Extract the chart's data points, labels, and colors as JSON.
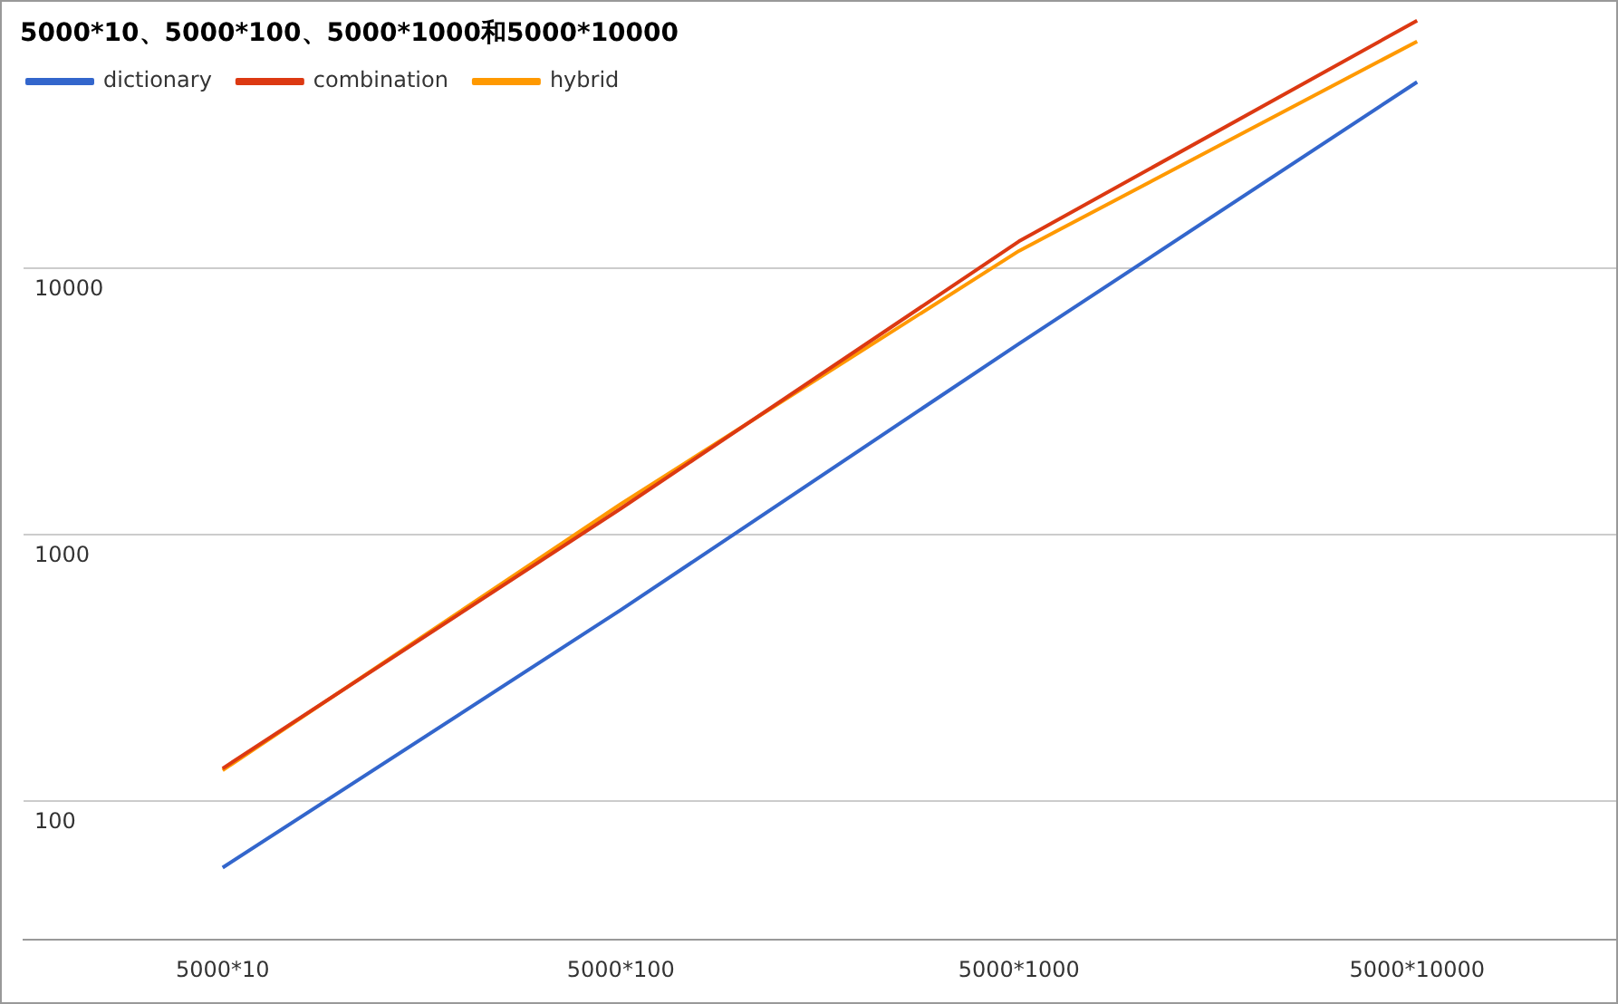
{
  "chart_data": {
    "type": "line",
    "title": "5000*10、5000*100、5000*1000和5000*10000",
    "categories": [
      "5000*10",
      "5000*100",
      "5000*1000",
      "5000*10000"
    ],
    "series": [
      {
        "name": "dictionary",
        "color": "#3366cc",
        "values": [
          56,
          520,
          5200,
          50000
        ]
      },
      {
        "name": "combination",
        "color": "#dc3912",
        "values": [
          132,
          1250,
          12600,
          85000
        ]
      },
      {
        "name": "hybrid",
        "color": "#ff9900",
        "values": [
          130,
          1300,
          11600,
          71000
        ]
      }
    ],
    "log": "y",
    "ylim": [
      30,
      100000
    ],
    "yticks": [
      100,
      1000,
      10000
    ],
    "grid": "y",
    "legend": "top left",
    "marker": "none",
    "line_style": "solid"
  }
}
